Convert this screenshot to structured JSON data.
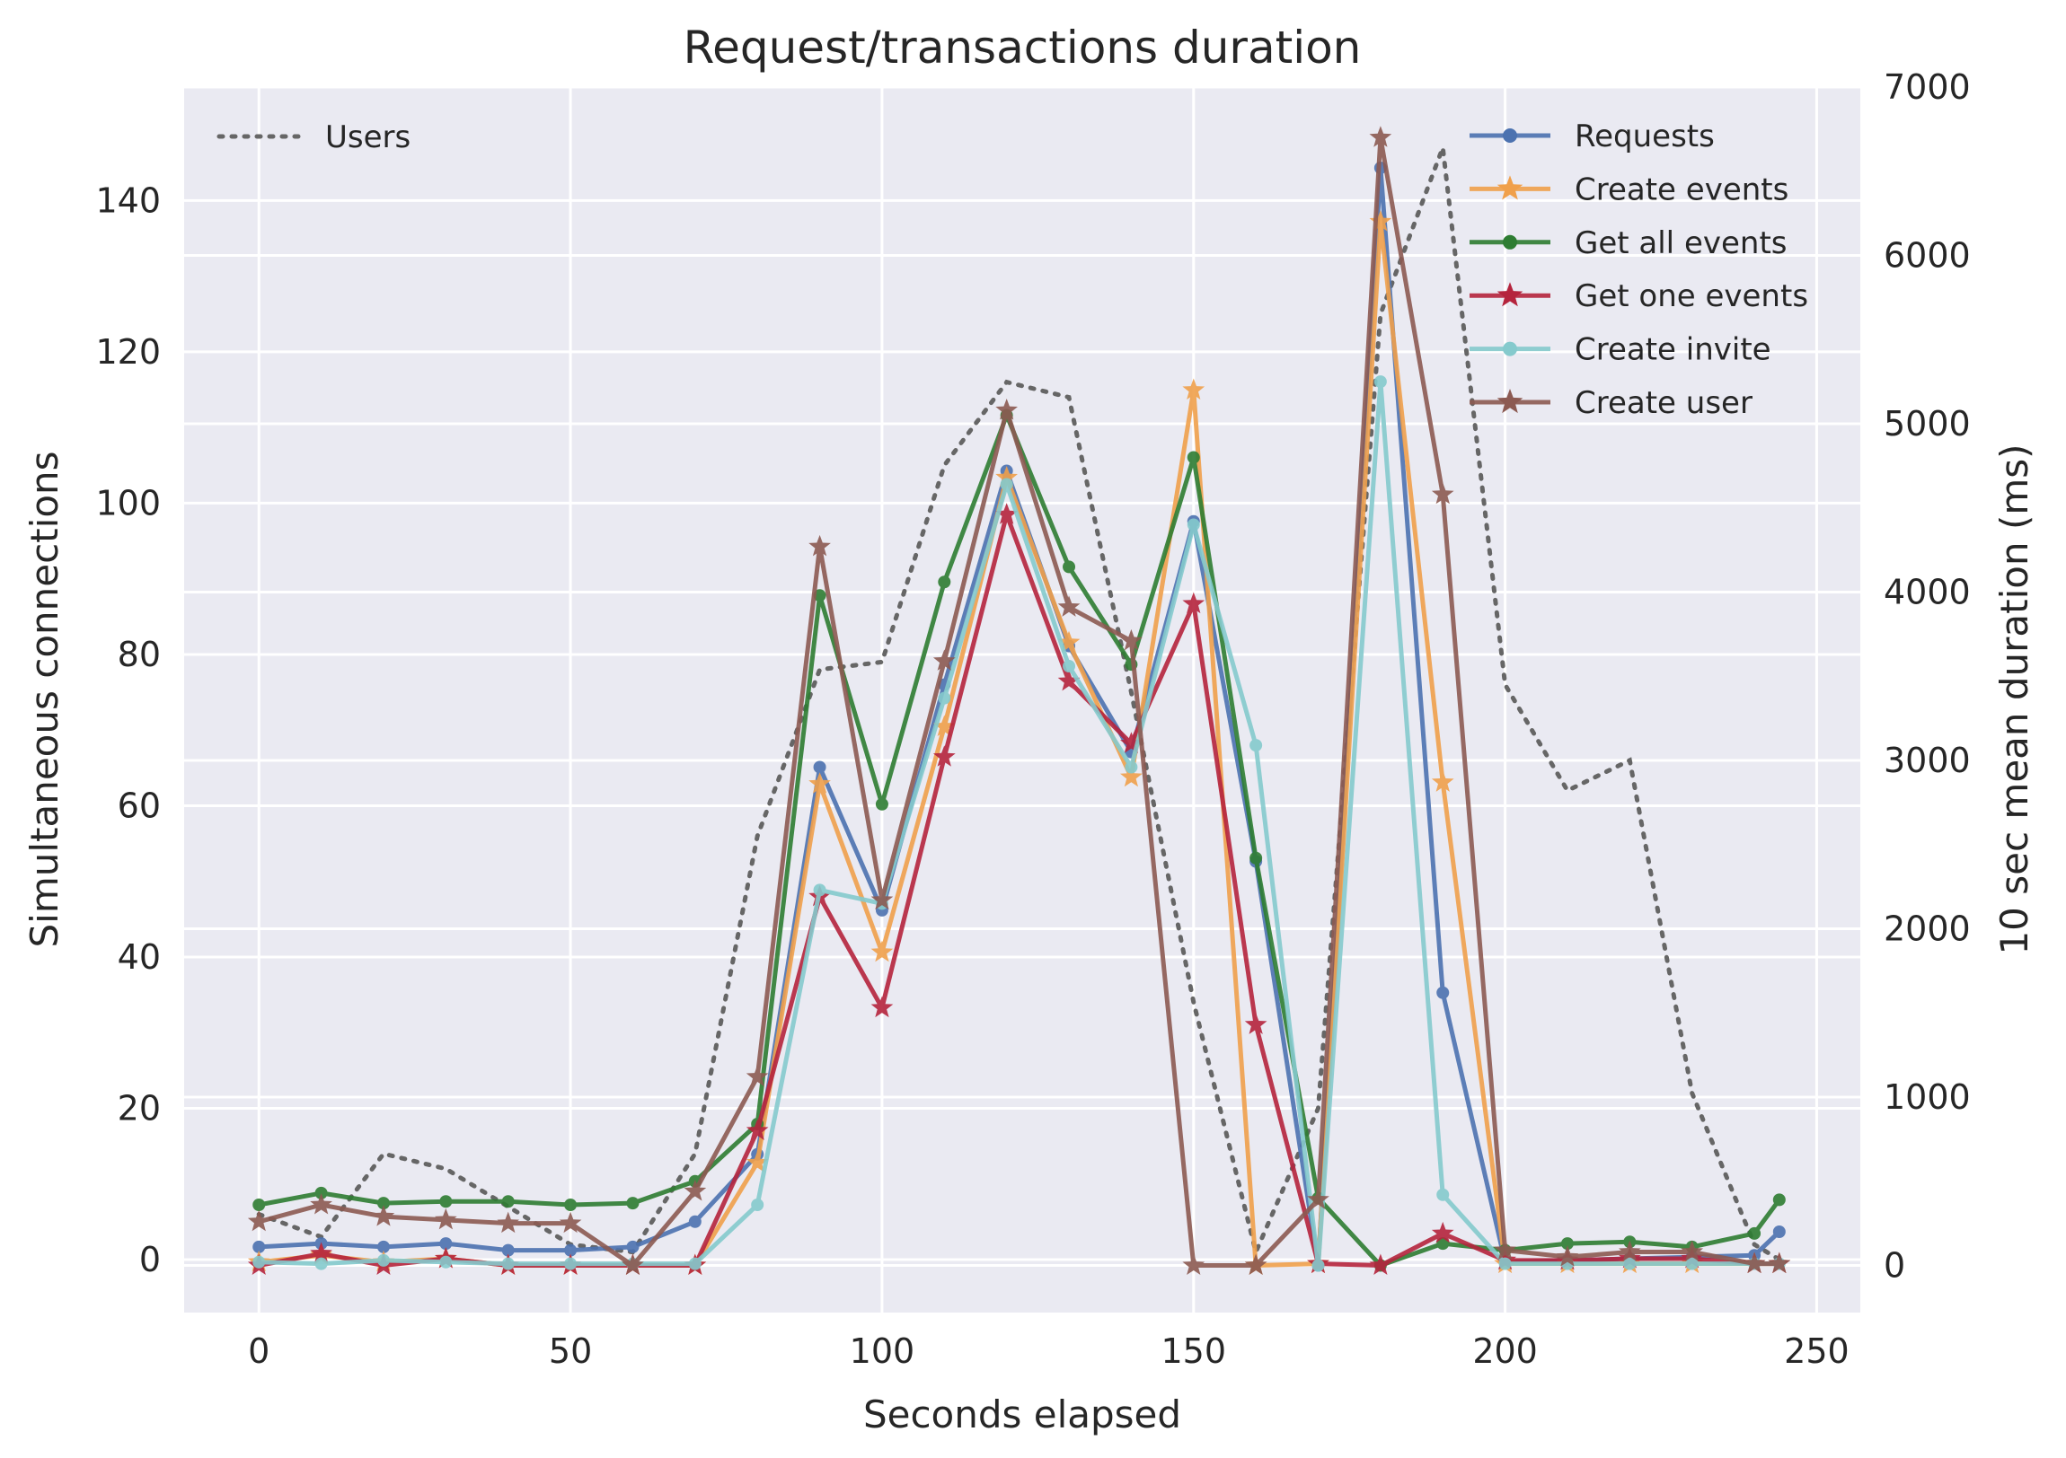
{
  "chart_data": {
    "type": "line",
    "title": "Request/transactions duration",
    "xlabel": "Seconds elapsed",
    "ylabel_left": "Simultaneous connections",
    "ylabel_right": "10 sec mean duration (ms)",
    "xlim": [
      -12,
      257
    ],
    "ylim_left": [
      -7,
      155
    ],
    "ylim_right": [
      -280,
      7000
    ],
    "x_ticks": [
      0,
      50,
      100,
      150,
      200,
      250
    ],
    "y_left_ticks": [
      0,
      20,
      40,
      60,
      80,
      100,
      120,
      140
    ],
    "y_right_ticks": [
      0,
      1000,
      2000,
      3000,
      4000,
      5000,
      6000,
      7000
    ],
    "grid": true,
    "users_legend_position": "upper-left",
    "series_legend_position": "upper-right",
    "users": {
      "name": "Users",
      "axis": "left",
      "color": "#666666",
      "style": "dotted",
      "x": [
        0,
        10,
        20,
        30,
        40,
        50,
        60,
        70,
        80,
        90,
        100,
        110,
        120,
        130,
        140,
        150,
        160,
        170,
        180,
        190,
        200,
        210,
        220,
        230,
        240,
        244
      ],
      "values": [
        6,
        3,
        14,
        12,
        7,
        2,
        1,
        14,
        56,
        78,
        79,
        105,
        116,
        114,
        75,
        34,
        1,
        20,
        125,
        147,
        76,
        62,
        66,
        22,
        2,
        0
      ]
    },
    "series": [
      {
        "name": "Requests",
        "axis": "right",
        "color": "#4c72b0",
        "marker": "dot",
        "x": [
          0,
          10,
          20,
          30,
          40,
          50,
          60,
          70,
          80,
          90,
          100,
          110,
          120,
          130,
          140,
          150,
          160,
          170,
          180,
          190,
          200,
          210,
          220,
          230,
          240,
          244
        ],
        "values": [
          110,
          130,
          110,
          130,
          90,
          90,
          110,
          260,
          660,
          2960,
          2110,
          3450,
          4720,
          3680,
          3050,
          4420,
          2400,
          0,
          6520,
          1620,
          20,
          30,
          40,
          50,
          60,
          200
        ]
      },
      {
        "name": "Create events",
        "axis": "right",
        "color": "#f0a04b",
        "marker": "star",
        "x": [
          0,
          10,
          20,
          30,
          40,
          50,
          60,
          70,
          80,
          90,
          100,
          110,
          120,
          130,
          140,
          150,
          160,
          170,
          180,
          190,
          200,
          210,
          220,
          230,
          240,
          244
        ],
        "values": [
          20,
          60,
          20,
          40,
          0,
          0,
          0,
          0,
          610,
          2860,
          1860,
          3200,
          4680,
          3700,
          2900,
          5200,
          0,
          10,
          6200,
          2870,
          10,
          10,
          10,
          10,
          10,
          10
        ]
      },
      {
        "name": "Get all events",
        "axis": "right",
        "color": "#2e7d32",
        "marker": "dot",
        "x": [
          0,
          10,
          20,
          30,
          40,
          50,
          60,
          70,
          80,
          90,
          100,
          110,
          120,
          130,
          140,
          150,
          160,
          170,
          180,
          190,
          200,
          210,
          220,
          230,
          240,
          244
        ],
        "values": [
          360,
          430,
          370,
          380,
          380,
          360,
          370,
          500,
          840,
          3980,
          2740,
          4060,
          5050,
          4150,
          3570,
          4800,
          2420,
          400,
          0,
          130,
          90,
          130,
          140,
          110,
          190,
          390
        ]
      },
      {
        "name": "Get one events",
        "axis": "right",
        "color": "#b5243d",
        "marker": "star",
        "x": [
          0,
          10,
          20,
          30,
          40,
          50,
          60,
          70,
          80,
          90,
          100,
          110,
          120,
          130,
          140,
          150,
          160,
          170,
          180,
          190,
          200,
          210,
          220,
          230,
          240,
          244
        ],
        "values": [
          0,
          70,
          0,
          40,
          0,
          0,
          0,
          0,
          800,
          2190,
          1530,
          3020,
          4460,
          3470,
          3100,
          3930,
          1430,
          10,
          0,
          190,
          30,
          30,
          40,
          40,
          10,
          10
        ]
      },
      {
        "name": "Create invite",
        "axis": "right",
        "color": "#85cacd",
        "marker": "dot",
        "x": [
          0,
          10,
          20,
          30,
          40,
          50,
          60,
          70,
          80,
          90,
          100,
          110,
          120,
          130,
          140,
          150,
          160,
          170,
          180,
          190,
          200,
          210,
          220,
          230,
          240,
          244
        ],
        "values": [
          20,
          10,
          30,
          20,
          10,
          10,
          10,
          10,
          360,
          2230,
          2150,
          3370,
          4640,
          3560,
          2960,
          4400,
          3090,
          0,
          5250,
          420,
          10,
          10,
          10,
          10,
          10,
          10
        ]
      },
      {
        "name": "Create user",
        "axis": "right",
        "color": "#8c5a52",
        "marker": "star",
        "x": [
          0,
          10,
          20,
          30,
          40,
          50,
          60,
          70,
          80,
          90,
          100,
          110,
          120,
          130,
          140,
          150,
          160,
          170,
          180,
          190,
          200,
          210,
          220,
          230,
          240,
          244
        ],
        "values": [
          260,
          360,
          290,
          270,
          250,
          250,
          0,
          440,
          1120,
          4270,
          2170,
          3590,
          5080,
          3910,
          3710,
          0,
          0,
          390,
          6700,
          4580,
          90,
          50,
          80,
          80,
          10,
          10
        ]
      }
    ]
  }
}
